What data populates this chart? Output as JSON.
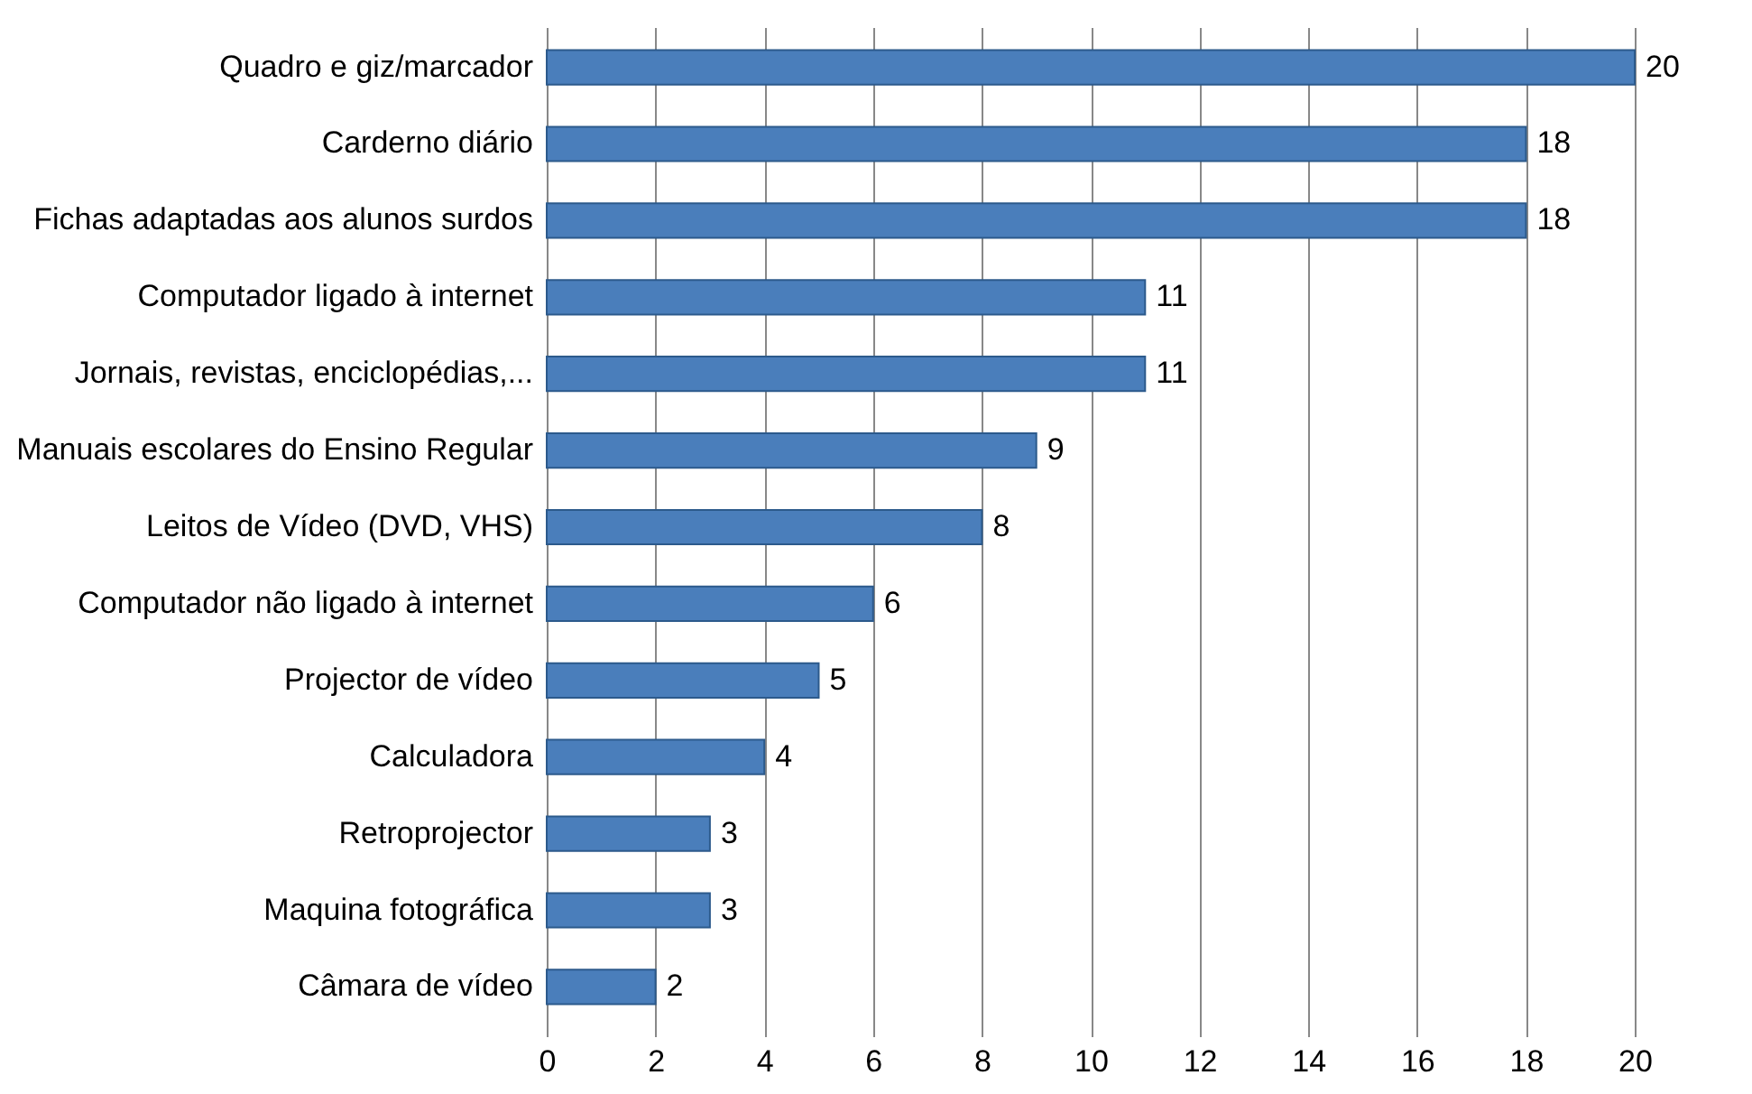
{
  "chart_data": {
    "type": "bar",
    "orientation": "horizontal",
    "categories": [
      "Quadro e giz/marcador",
      "Carderno diário",
      "Fichas adaptadas aos alunos surdos",
      "Computador ligado à internet",
      "Jornais, revistas, enciclopédias,...",
      "Manuais escolares do Ensino Regular",
      "Leitos de Vídeo (DVD, VHS)",
      "Computador não ligado à internet",
      "Projector de vídeo",
      "Calculadora",
      "Retroprojector",
      "Maquina fotográfica",
      "Câmara de vídeo"
    ],
    "values": [
      20,
      18,
      18,
      11,
      11,
      9,
      8,
      6,
      5,
      4,
      3,
      3,
      2
    ],
    "color": "#4a7ebb",
    "xlim": [
      0,
      20
    ],
    "xticks": [
      0,
      2,
      4,
      6,
      8,
      10,
      12,
      14,
      16,
      18,
      20
    ],
    "grid": "x",
    "data_labels": true
  }
}
